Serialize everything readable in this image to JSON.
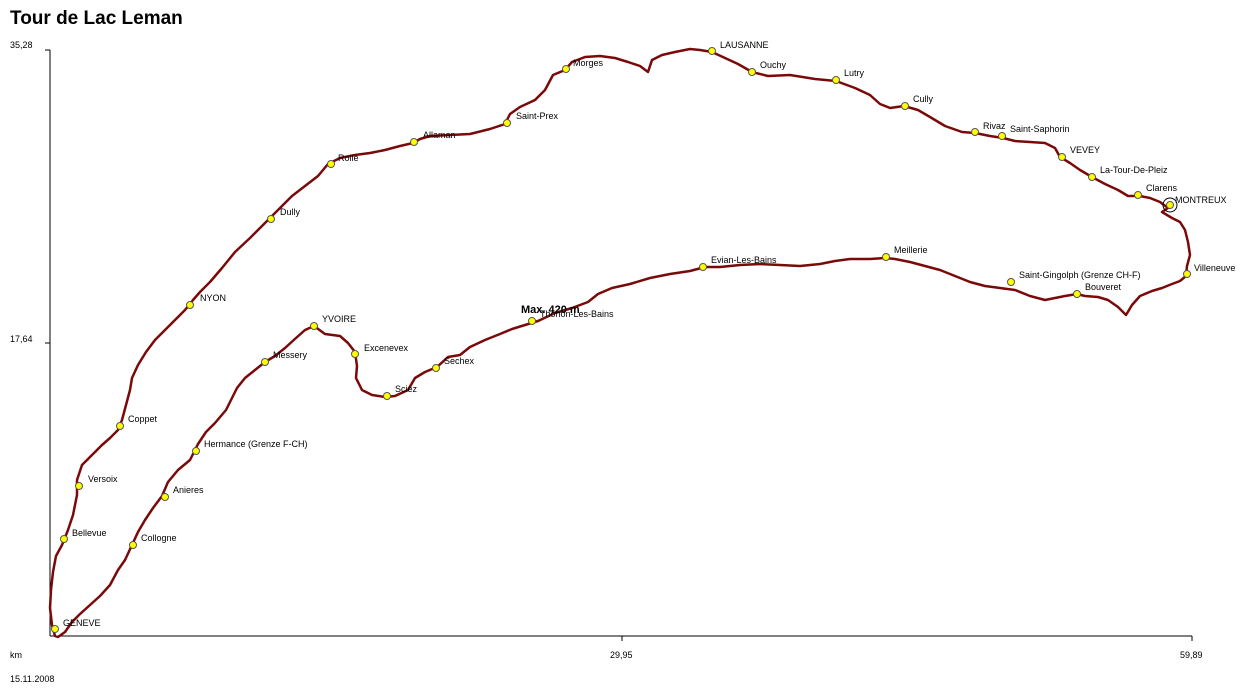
{
  "title": "Tour de Lac Leman",
  "date": "15.11.2008",
  "axis": {
    "x_unit": "km",
    "x_ticks": [
      "29,95",
      "59,89"
    ],
    "y_ticks": [
      "35,28",
      "17,64"
    ]
  },
  "max_label": "Max. 420 m",
  "colors": {
    "route": "#7a0a0a",
    "waypoint_fill": "#ffff00",
    "waypoint_stroke": "#555555"
  },
  "places": [
    "GENEVE",
    "Bellevue",
    "Versoix",
    "Coppet",
    "NYON",
    "Dully",
    "Rolle",
    "Allaman",
    "Saint-Prex",
    "Morges",
    "LAUSANNE",
    "Ouchy",
    "Lutry",
    "Cully",
    "Rivaz",
    "Saint-Saphorin",
    "VEVEY",
    "La-Tour-De-Pleiz",
    "Clarens",
    "MONTREUX",
    "Villeneuve",
    "Bouveret",
    "Saint-Gingolph (Grenze CH-F)",
    "Meillerie",
    "Evian-Les-Bains",
    "Thonon-Les-Bains",
    "Sechex",
    "Sciez",
    "Excenevex",
    "YVOIRE",
    "Messery",
    "Hermance (Grenze F-CH)",
    "Anieres",
    "Collogne"
  ]
}
